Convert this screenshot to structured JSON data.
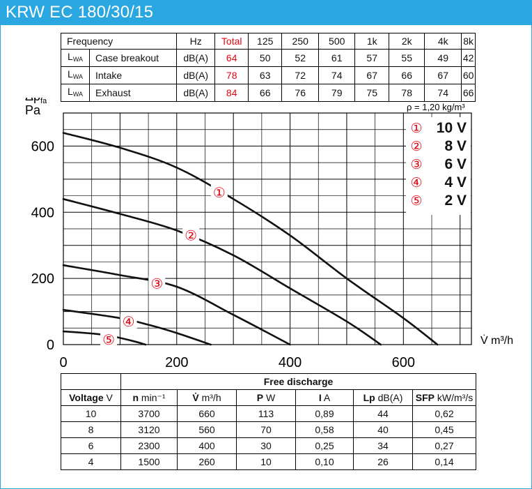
{
  "title": "KRW EC 180/30/15",
  "sound_table": {
    "header": [
      "Frequency",
      "Hz",
      "Total",
      "125",
      "250",
      "500",
      "1k",
      "2k",
      "4k",
      "8k"
    ],
    "rows": [
      {
        "sym": "L",
        "sub": "WA",
        "label": "Case breakout",
        "unit": "dB(A)",
        "total": "64",
        "values": [
          "50",
          "52",
          "61",
          "57",
          "55",
          "49",
          "42"
        ]
      },
      {
        "sym": "L",
        "sub": "WA",
        "label": "Intake",
        "unit": "dB(A)",
        "total": "78",
        "values": [
          "63",
          "72",
          "74",
          "67",
          "66",
          "67",
          "60"
        ]
      },
      {
        "sym": "L",
        "sub": "WA",
        "label": "Exhaust",
        "unit": "dB(A)",
        "total": "84",
        "values": [
          "66",
          "76",
          "79",
          "75",
          "78",
          "74",
          "66"
        ]
      }
    ]
  },
  "chart_data": {
    "type": "line",
    "ylabel_main": "Δp",
    "ylabel_sub": "fa",
    "yunit": "Pa",
    "xlabel": "V̇ m³/h",
    "density_note": "ρ = 1,20 kg/m³",
    "xlim": [
      0,
      720
    ],
    "ylim": [
      0,
      700
    ],
    "x_ticks": [
      "0",
      "200",
      "400",
      "600"
    ],
    "y_ticks": [
      "0",
      "200",
      "400",
      "600"
    ],
    "grid": true,
    "legend_position": "top-right",
    "legend": [
      {
        "num": "①",
        "label": "10 V"
      },
      {
        "num": "②",
        "label": "8 V"
      },
      {
        "num": "③",
        "label": "6 V"
      },
      {
        "num": "④",
        "label": "4 V"
      },
      {
        "num": "⑤",
        "label": "2 V"
      }
    ],
    "series": [
      {
        "marker": "①",
        "marker_at": [
          275,
          460
        ],
        "points": [
          [
            0,
            640
          ],
          [
            100,
            595
          ],
          [
            200,
            535
          ],
          [
            300,
            440
          ],
          [
            400,
            330
          ],
          [
            500,
            200
          ],
          [
            600,
            80
          ],
          [
            660,
            0
          ]
        ]
      },
      {
        "marker": "②",
        "marker_at": [
          225,
          330
        ],
        "points": [
          [
            0,
            440
          ],
          [
            100,
            395
          ],
          [
            200,
            345
          ],
          [
            300,
            270
          ],
          [
            400,
            170
          ],
          [
            500,
            70
          ],
          [
            560,
            0
          ]
        ]
      },
      {
        "marker": "③",
        "marker_at": [
          165,
          185
        ],
        "points": [
          [
            0,
            240
          ],
          [
            100,
            210
          ],
          [
            200,
            175
          ],
          [
            300,
            90
          ],
          [
            400,
            0
          ]
        ]
      },
      {
        "marker": "④",
        "marker_at": [
          115,
          70
        ],
        "points": [
          [
            0,
            105
          ],
          [
            100,
            80
          ],
          [
            150,
            60
          ],
          [
            200,
            35
          ],
          [
            260,
            0
          ]
        ]
      },
      {
        "marker": "⑤",
        "marker_at": [
          80,
          15
        ],
        "points": [
          [
            0,
            40
          ],
          [
            70,
            30
          ],
          [
            120,
            12
          ],
          [
            145,
            0
          ]
        ]
      }
    ]
  },
  "perf_table": {
    "group_header": "Free discharge",
    "header": [
      {
        "b": "Voltage",
        "u": " V"
      },
      {
        "b": "n",
        "u": " min⁻¹"
      },
      {
        "b": "V̇",
        "u": " m³/h"
      },
      {
        "b": "P",
        "u": " W"
      },
      {
        "b": "I",
        "u": " A"
      },
      {
        "b": "Lp",
        "u": " dB(A)"
      },
      {
        "b": "SFP",
        "u": " kW/m³/s"
      }
    ],
    "rows": [
      [
        "10",
        "3700",
        "660",
        "113",
        "0,89",
        "44",
        "0,62"
      ],
      [
        "8",
        "3120",
        "560",
        "70",
        "0,58",
        "40",
        "0,45"
      ],
      [
        "6",
        "2300",
        "400",
        "30",
        "0,25",
        "34",
        "0,27"
      ],
      [
        "4",
        "1500",
        "260",
        "10",
        "0,10",
        "26",
        "0,14"
      ]
    ]
  }
}
